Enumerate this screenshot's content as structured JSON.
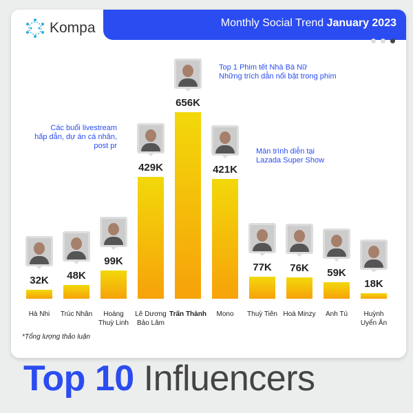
{
  "brand": "Kompa",
  "header": {
    "title_regular": "Monthly Social Trend",
    "title_bold": "January 2023"
  },
  "pager": {
    "count": 3,
    "active": 3
  },
  "footnote": "*Tổng lượng thảo luận",
  "headline": {
    "part1": "Top 10",
    "part2": "Influencers"
  },
  "colors": {
    "accent": "#2a4cf0",
    "bar_top": "#f2d80a",
    "bar_bottom": "#f7a20a"
  },
  "chart_data": {
    "type": "bar",
    "categories": [
      "Hà Nhi",
      "Trúc Nhân",
      "Hoàng Thuỳ Linh",
      "Lê Dương Bảo Lâm",
      "Trấn Thành",
      "Mono",
      "Thuỳ Tiên",
      "Hoà Minzy",
      "Anh Tú",
      "Huỳnh Uyển Ân"
    ],
    "name_lines": [
      [
        "Hà Nhi"
      ],
      [
        "Trúc Nhân"
      ],
      [
        "Hoàng",
        "Thuỳ Linh"
      ],
      [
        "Lê Dương",
        "Bảo Lâm"
      ],
      [
        "Trấn Thành"
      ],
      [
        "Mono"
      ],
      [
        "Thuỳ Tiên"
      ],
      [
        "Hoà Minzy"
      ],
      [
        "Anh Tú"
      ],
      [
        "Huỳnh",
        "Uyển Ân"
      ]
    ],
    "values": [
      32,
      48,
      99,
      429,
      656,
      421,
      77,
      76,
      59,
      18
    ],
    "value_labels": [
      "32K",
      "48K",
      "99K",
      "429K",
      "656K",
      "421K",
      "77K",
      "76K",
      "59K",
      "18K"
    ],
    "unit": "K",
    "highlight": "Trấn Thành",
    "annotations": [
      {
        "category": "Trấn Thành",
        "lines": [
          "Top 1 Phim tết Nhà Bà Nữ",
          "Những trích dẫn nổi bật trong phim"
        ]
      },
      {
        "category": "Lê Dương Bảo Lâm",
        "lines": [
          "Các buổi livestream",
          "hấp dẫn, dự án cá nhân,",
          "post pr"
        ]
      },
      {
        "category": "Mono",
        "lines": [
          "Màn trình diễn tại",
          "Lazada Super Show"
        ]
      }
    ]
  }
}
